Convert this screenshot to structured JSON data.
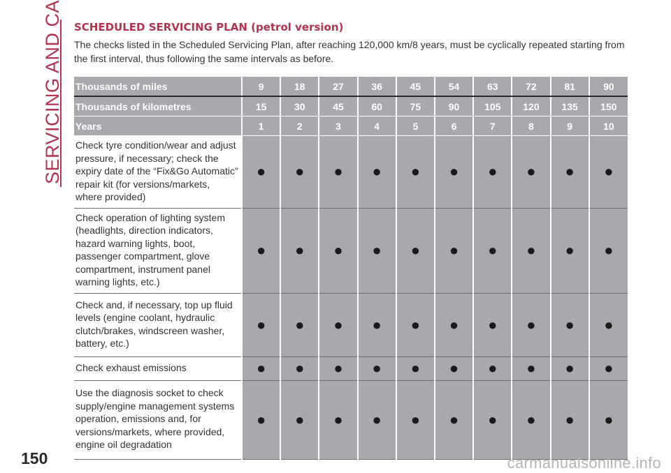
{
  "sidebar": {
    "section_title": "SERVICING AND CARE"
  },
  "header": {
    "title": "SCHEDULED SERVICING PLAN (petrol version)",
    "intro": "The checks listed in the Scheduled Servicing Plan, after reaching 120,000 km/8 years, must be cyclically repeated starting from the first interval, thus following the same intervals as before."
  },
  "table": {
    "header_rows": [
      {
        "label": "Thousands of miles",
        "values": [
          "9",
          "18",
          "27",
          "36",
          "45",
          "54",
          "63",
          "72",
          "81",
          "90"
        ]
      },
      {
        "label": "Thousands of kilometres",
        "values": [
          "15",
          "30",
          "45",
          "60",
          "75",
          "90",
          "105",
          "120",
          "135",
          "150"
        ]
      },
      {
        "label": "Years",
        "values": [
          "1",
          "2",
          "3",
          "4",
          "5",
          "6",
          "7",
          "8",
          "9",
          "10"
        ]
      }
    ],
    "rows": [
      {
        "task": "Check tyre condition/wear and adjust pressure, if necessary; check the expiry date of the “Fix&Go Automatic” repair kit (for versions/markets, where provided)",
        "marks": [
          "●",
          "●",
          "●",
          "●",
          "●",
          "●",
          "●",
          "●",
          "●",
          "●"
        ]
      },
      {
        "task": "Check operation of lighting system (headlights, direction indicators, hazard warning lights, boot, passenger compartment, glove compartment, instrument panel warning lights, etc.)",
        "marks": [
          "●",
          "●",
          "●",
          "●",
          "●",
          "●",
          "●",
          "●",
          "●",
          "●"
        ]
      },
      {
        "task": "Check and, if necessary, top up fluid levels (engine coolant, hydraulic clutch/brakes, windscreen washer, battery, etc.)",
        "marks": [
          "●",
          "●",
          "●",
          "●",
          "●",
          "●",
          "●",
          "●",
          "●",
          "●"
        ]
      },
      {
        "task": "Check exhaust emissions",
        "marks": [
          "●",
          "●",
          "●",
          "●",
          "●",
          "●",
          "●",
          "●",
          "●",
          "●"
        ]
      },
      {
        "task": "Use the diagnosis socket to check supply/engine management systems operation, emissions and, for versions/markets, where provided, engine oil degradation",
        "marks": [
          "●",
          "●",
          "●",
          "●",
          "●",
          "●",
          "●",
          "●",
          "●",
          "●"
        ]
      }
    ]
  },
  "footer": {
    "page_number": "150",
    "watermark": "carmanualsonline.info"
  },
  "colors": {
    "accent": "#b2344f",
    "header_fill": "#a7a9ac",
    "mark_fill": "#a7a9ac"
  }
}
